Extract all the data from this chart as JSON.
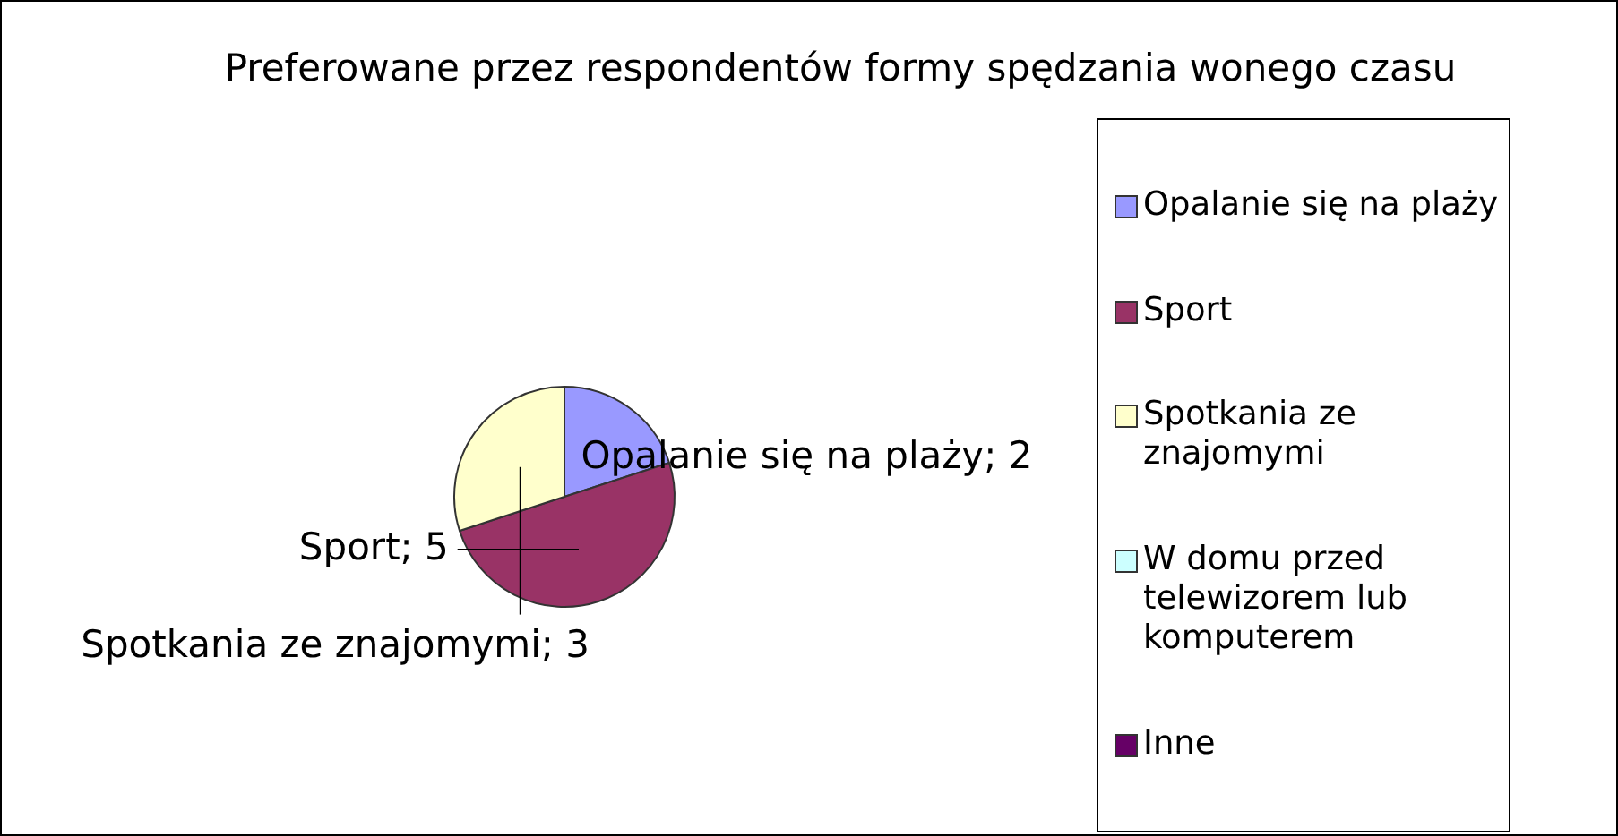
{
  "chart_data": {
    "type": "pie",
    "title": "Preferowane przez respondentów formy spędzania wonego czasu",
    "categories": [
      "Opalanie się na plaży",
      "Sport",
      "Spotkania ze znajomymi",
      "W domu przed telewizorem lub komputerem",
      "Inne"
    ],
    "values": [
      2,
      5,
      3,
      0,
      0
    ],
    "colors": [
      "#9999ff",
      "#993366",
      "#ffffcc",
      "#ccffff",
      "#660066"
    ],
    "value_labels": [
      "Opalanie się na plaży; 2",
      "Sport; 5",
      "Spotkania ze znajomymi; 3",
      null,
      null
    ],
    "legend": "right"
  }
}
